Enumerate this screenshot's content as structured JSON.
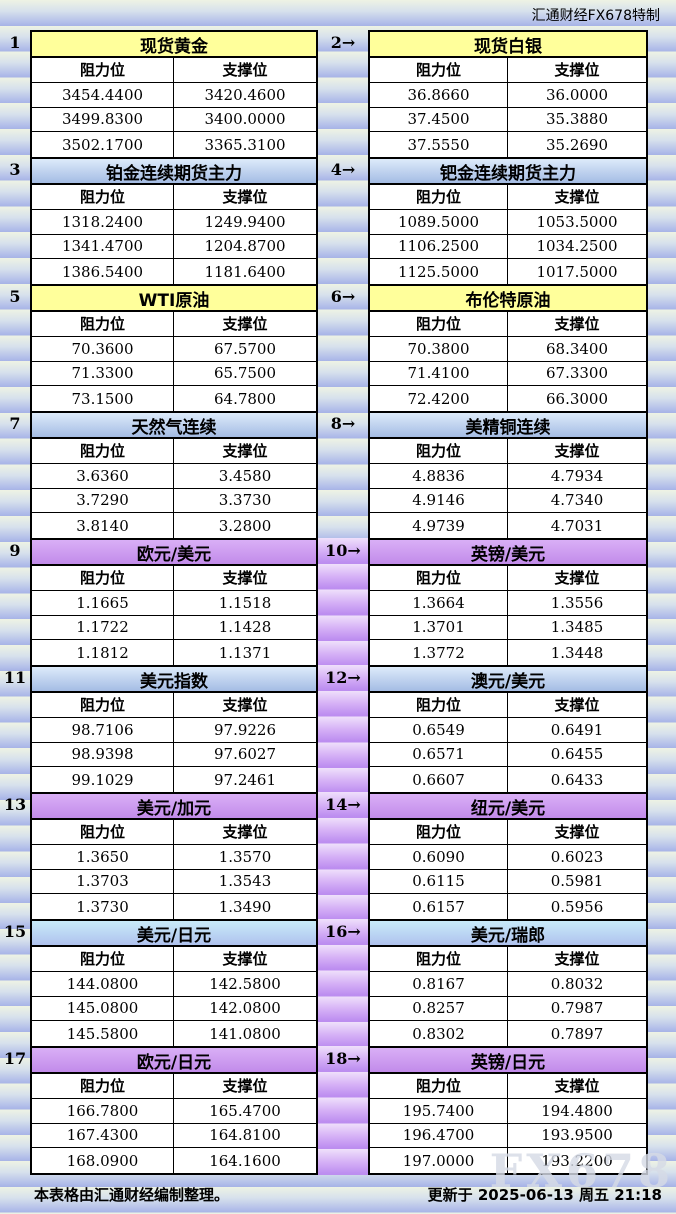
{
  "meta": {
    "brand": "汇通财经FX678特制",
    "watermark": "FX678"
  },
  "columns": {
    "resistance": "阻力位",
    "support": "支撑位"
  },
  "footer": {
    "note": "本表格由汇通财经编制整理。",
    "updated": "更新于 2025-06-13 周五 21:18"
  },
  "palette": {
    "title_yellow": "#ffff9b",
    "title_blue": "#b7cdec",
    "title_purple": "#cc99ee",
    "title_cyan": "#bfe3f5",
    "background_band": "#a7b3e6",
    "strip_purple_band": "#bd8ef0",
    "border": "#000000",
    "cell_bg": "#ffffff"
  },
  "sections": [
    {
      "purple_strip": false,
      "left": {
        "no": "1",
        "title": "现货黄金",
        "color": "yellow",
        "rows": [
          [
            "3454.4400",
            "3420.4600"
          ],
          [
            "3499.8300",
            "3400.0000"
          ],
          [
            "3502.1700",
            "3365.3100"
          ]
        ]
      },
      "right": {
        "no": "2→",
        "title": "现货白银",
        "color": "yellow",
        "rows": [
          [
            "36.8660",
            "36.0000"
          ],
          [
            "37.4500",
            "35.3880"
          ],
          [
            "37.5550",
            "35.2690"
          ]
        ]
      }
    },
    {
      "purple_strip": false,
      "left": {
        "no": "3",
        "title": "铂金连续期货主力",
        "color": "blue",
        "rows": [
          [
            "1318.2400",
            "1249.9400"
          ],
          [
            "1341.4700",
            "1204.8700"
          ],
          [
            "1386.5400",
            "1181.6400"
          ]
        ]
      },
      "right": {
        "no": "4→",
        "title": "钯金连续期货主力",
        "color": "blue",
        "rows": [
          [
            "1089.5000",
            "1053.5000"
          ],
          [
            "1106.2500",
            "1034.2500"
          ],
          [
            "1125.5000",
            "1017.5000"
          ]
        ]
      }
    },
    {
      "purple_strip": false,
      "left": {
        "no": "5",
        "title": "WTI原油",
        "color": "yellow",
        "rows": [
          [
            "70.3600",
            "67.5700"
          ],
          [
            "71.3300",
            "65.7500"
          ],
          [
            "73.1500",
            "64.7800"
          ]
        ]
      },
      "right": {
        "no": "6→",
        "title": "布伦特原油",
        "color": "yellow",
        "rows": [
          [
            "70.3800",
            "68.3400"
          ],
          [
            "71.4100",
            "67.3300"
          ],
          [
            "72.4200",
            "66.3000"
          ]
        ]
      }
    },
    {
      "purple_strip": false,
      "left": {
        "no": "7",
        "title": "天然气连续",
        "color": "blue",
        "rows": [
          [
            "3.6360",
            "3.4580"
          ],
          [
            "3.7290",
            "3.3730"
          ],
          [
            "3.8140",
            "3.2800"
          ]
        ]
      },
      "right": {
        "no": "8→",
        "title": "美精铜连续",
        "color": "blue",
        "rows": [
          [
            "4.8836",
            "4.7934"
          ],
          [
            "4.9146",
            "4.7340"
          ],
          [
            "4.9739",
            "4.7031"
          ]
        ]
      }
    },
    {
      "purple_strip": true,
      "left": {
        "no": "9",
        "title": "欧元/美元",
        "color": "purple",
        "rows": [
          [
            "1.1665",
            "1.1518"
          ],
          [
            "1.1722",
            "1.1428"
          ],
          [
            "1.1812",
            "1.1371"
          ]
        ]
      },
      "right": {
        "no": "10→",
        "title": "英镑/美元",
        "color": "purple",
        "rows": [
          [
            "1.3664",
            "1.3556"
          ],
          [
            "1.3701",
            "1.3485"
          ],
          [
            "1.3772",
            "1.3448"
          ]
        ]
      }
    },
    {
      "purple_strip": true,
      "left": {
        "no": "11",
        "title": "美元指数",
        "color": "blue",
        "rows": [
          [
            "98.7106",
            "97.9226"
          ],
          [
            "98.9398",
            "97.6027"
          ],
          [
            "99.1029",
            "97.2461"
          ]
        ]
      },
      "right": {
        "no": "12→",
        "title": "澳元/美元",
        "color": "blue",
        "rows": [
          [
            "0.6549",
            "0.6491"
          ],
          [
            "0.6571",
            "0.6455"
          ],
          [
            "0.6607",
            "0.6433"
          ]
        ]
      }
    },
    {
      "purple_strip": true,
      "left": {
        "no": "13",
        "title": "美元/加元",
        "color": "purple",
        "rows": [
          [
            "1.3650",
            "1.3570"
          ],
          [
            "1.3703",
            "1.3543"
          ],
          [
            "1.3730",
            "1.3490"
          ]
        ]
      },
      "right": {
        "no": "14→",
        "title": "纽元/美元",
        "color": "purple",
        "rows": [
          [
            "0.6090",
            "0.6023"
          ],
          [
            "0.6115",
            "0.5981"
          ],
          [
            "0.6157",
            "0.5956"
          ]
        ]
      }
    },
    {
      "purple_strip": true,
      "left": {
        "no": "15",
        "title": "美元/日元",
        "color": "cyan",
        "rows": [
          [
            "144.0800",
            "142.5800"
          ],
          [
            "145.0800",
            "142.0800"
          ],
          [
            "145.5800",
            "141.0800"
          ]
        ]
      },
      "right": {
        "no": "16→",
        "title": "美元/瑞郎",
        "color": "cyan",
        "rows": [
          [
            "0.8167",
            "0.8032"
          ],
          [
            "0.8257",
            "0.7987"
          ],
          [
            "0.8302",
            "0.7897"
          ]
        ]
      }
    },
    {
      "purple_strip": true,
      "left": {
        "no": "17",
        "title": "欧元/日元",
        "color": "purple",
        "rows": [
          [
            "166.7800",
            "165.4700"
          ],
          [
            "167.4300",
            "164.8100"
          ],
          [
            "168.0900",
            "164.1600"
          ]
        ]
      },
      "right": {
        "no": "18→",
        "title": "英镑/日元",
        "color": "purple",
        "rows": [
          [
            "195.7400",
            "194.4800"
          ],
          [
            "196.4700",
            "193.9500"
          ],
          [
            "197.0000",
            "193.2200"
          ]
        ]
      }
    }
  ]
}
